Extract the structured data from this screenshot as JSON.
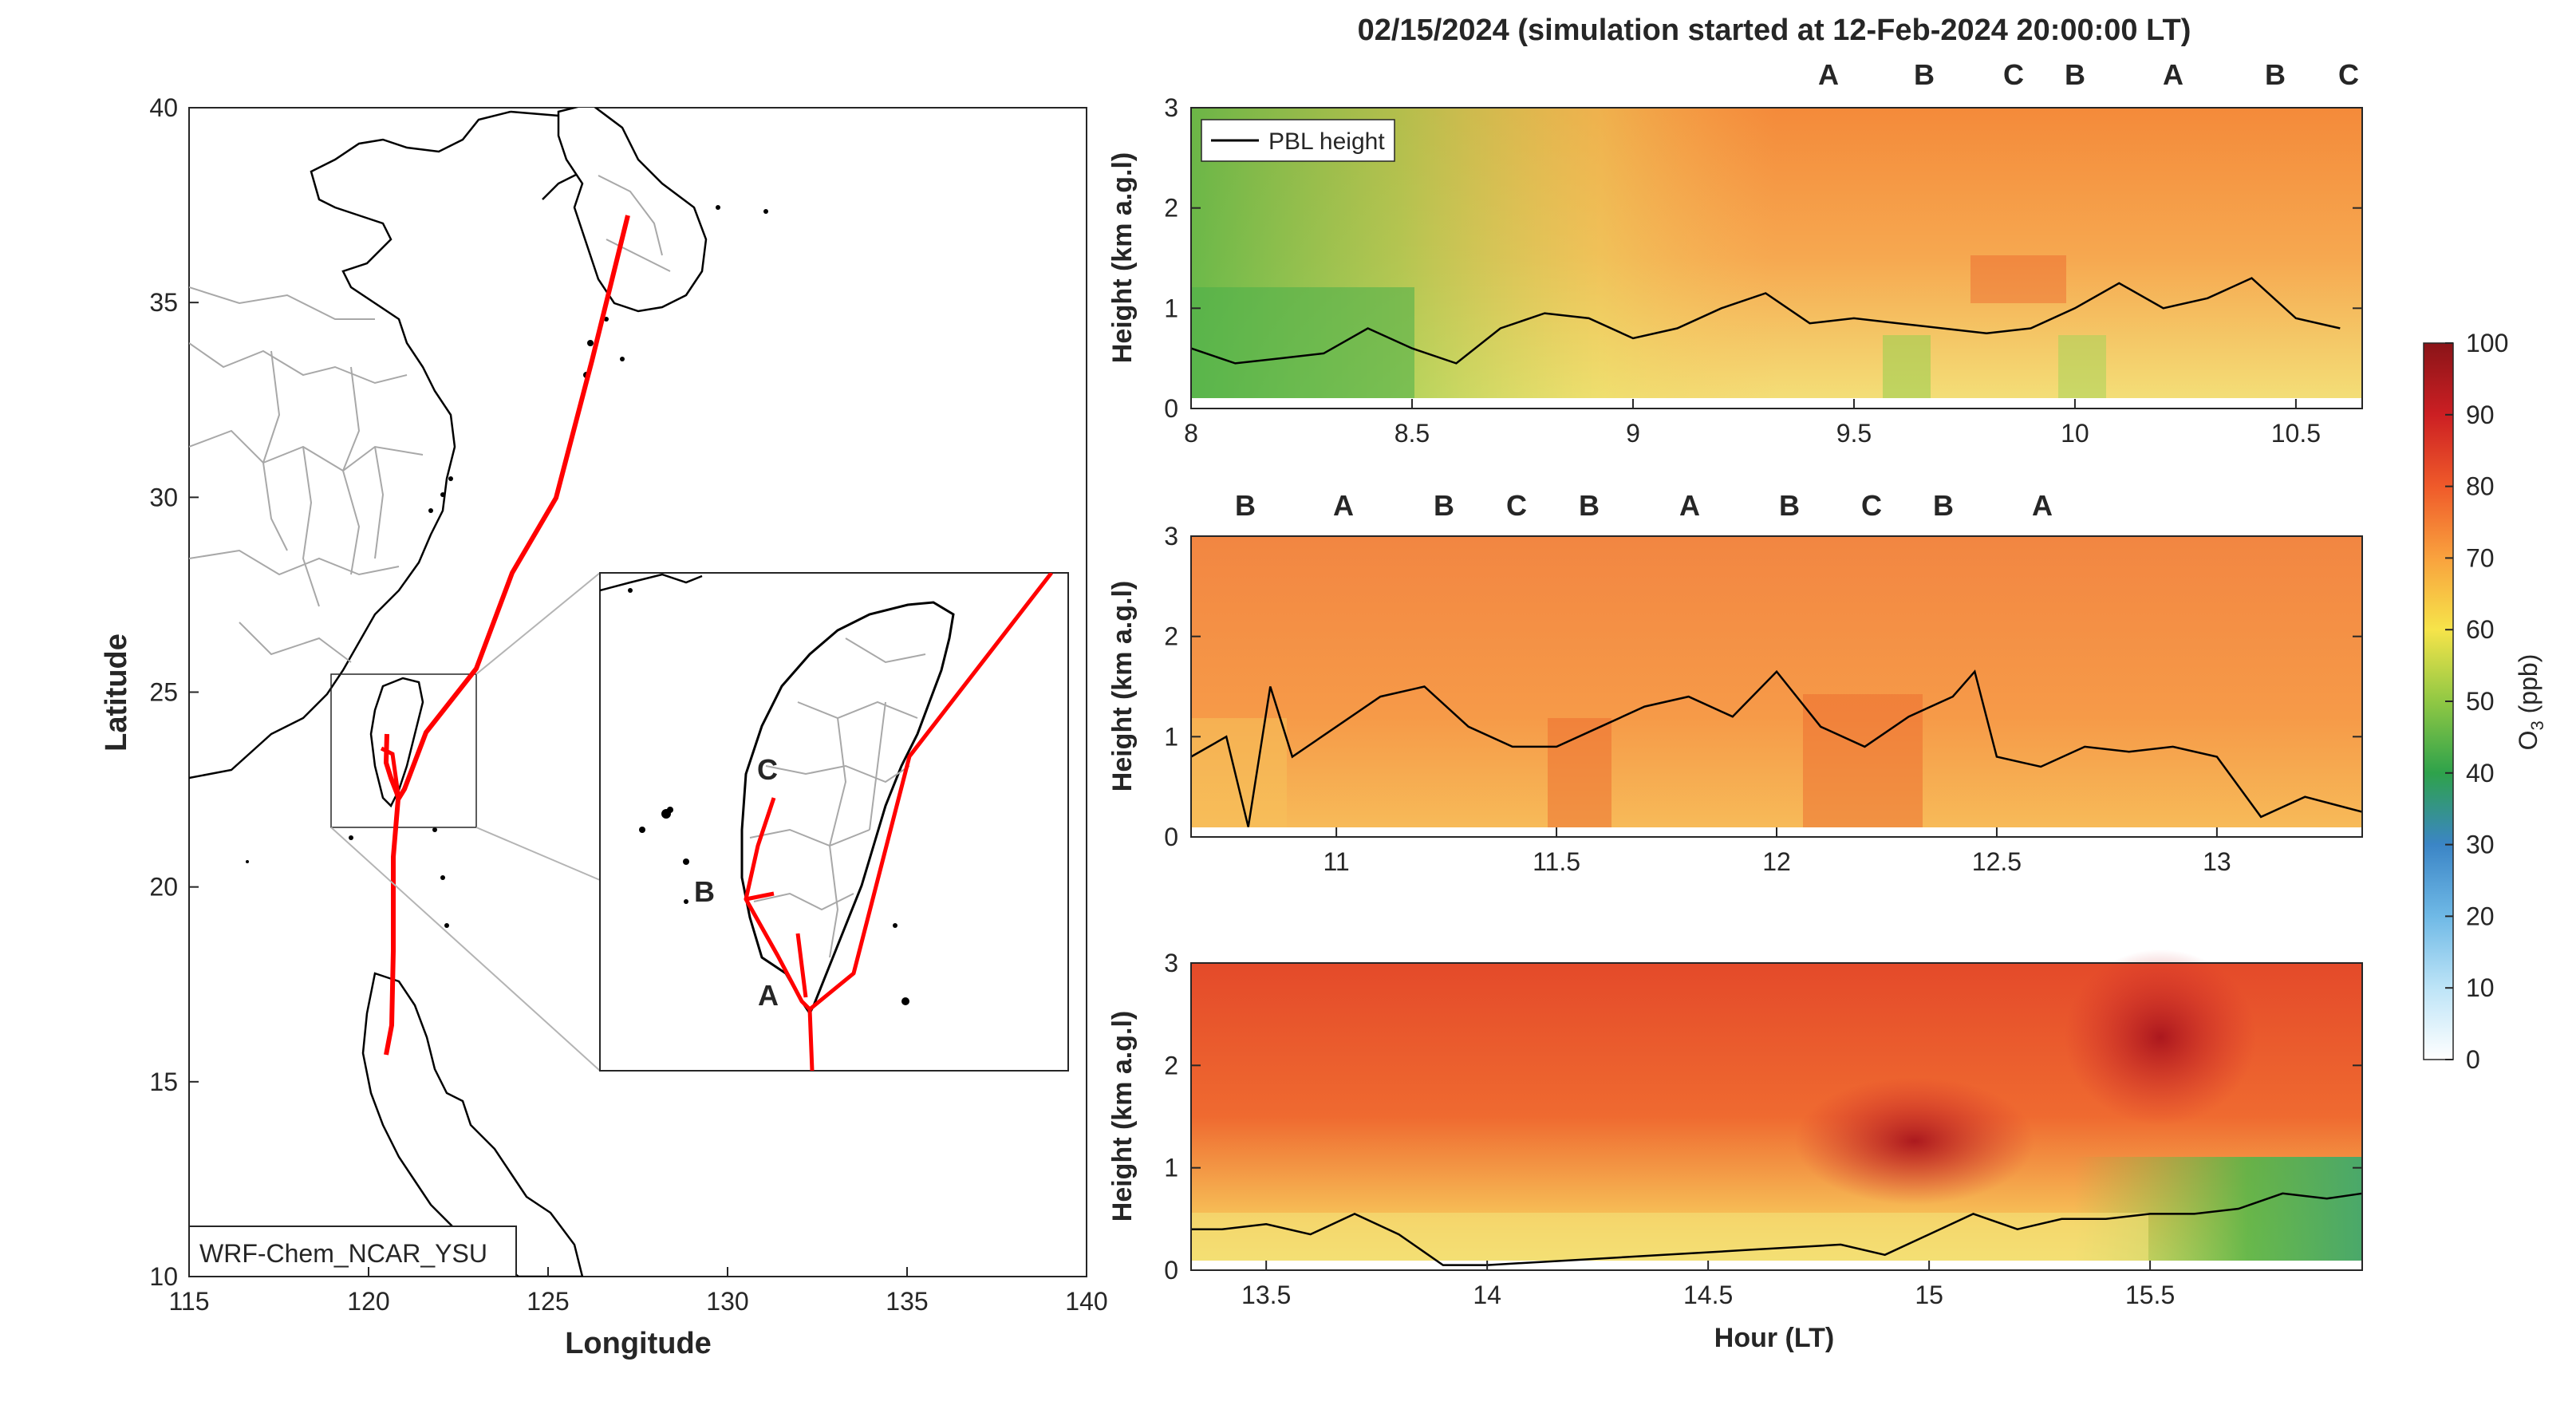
{
  "figure": {
    "title": "02/15/2024 (simulation started at 12-Feb-2024 20:00:00 LT)"
  },
  "map": {
    "xlabel": "Longitude",
    "ylabel": "Latitude",
    "xticks": [
      "115",
      "120",
      "125",
      "130",
      "135",
      "140"
    ],
    "yticks": [
      "10",
      "15",
      "20",
      "25",
      "30",
      "35",
      "40"
    ],
    "xlim": [
      115,
      140
    ],
    "ylim": [
      10,
      40
    ],
    "model_label": "WRF-Chem_NCAR_YSU",
    "track_color": "#ff0000",
    "inset_labels": [
      {
        "text": "C",
        "color": "#e6a020"
      },
      {
        "text": "B",
        "color": "#a01430"
      },
      {
        "text": "A",
        "color": "#000000"
      }
    ]
  },
  "panels": {
    "ylabel": "Height (km a.g.l)",
    "xlabel": "Hour (LT)",
    "yticks": [
      "0",
      "1",
      "2",
      "3"
    ],
    "legend_label": "PBL height",
    "colors": {
      "A": "#000000",
      "B": "#a01430",
      "C": "#e6a020"
    },
    "top": {
      "xticks": [
        "8",
        "8.5",
        "9",
        "9.5",
        "10",
        "10.5"
      ],
      "markers": [
        "A",
        "B",
        "C",
        "B",
        "A",
        "B",
        "C"
      ]
    },
    "middle": {
      "xticks": [
        "11",
        "11.5",
        "12",
        "12.5",
        "13"
      ],
      "markers": [
        "B",
        "A",
        "B",
        "C",
        "B",
        "A",
        "B",
        "C",
        "B",
        "A"
      ]
    },
    "bottom": {
      "xticks": [
        "13.5",
        "14",
        "14.5",
        "15",
        "15.5"
      ]
    }
  },
  "colorbar": {
    "label": "O3 (ppb)",
    "ticks": [
      "0",
      "10",
      "20",
      "30",
      "40",
      "50",
      "60",
      "70",
      "80",
      "90",
      "100"
    ]
  },
  "chart_data": [
    {
      "type": "line",
      "title": "",
      "xlabel": "Longitude",
      "ylabel": "Latitude",
      "xlim": [
        115,
        140
      ],
      "ylim": [
        10,
        40
      ],
      "series": [
        {
          "x": [
            127.2,
            125.9,
            125.0,
            123.6,
            123.0,
            121.6,
            121.2,
            121.0,
            120.7,
            120.7,
            120.6,
            120.5
          ],
          "y": [
            37.0,
            33.3,
            30.0,
            28.0,
            25.6,
            24.0,
            22.3,
            22.0,
            20.5,
            18.0,
            16.0,
            15.2
          ]
        },
        {
          "x": [
            120.5,
            120.5,
            120.7,
            120.9,
            121.0
          ],
          "y": [
            23.7,
            23.0,
            22.6,
            22.2,
            22.0
          ]
        }
      ]
    },
    {
      "type": "heatmap",
      "title": "",
      "xlabel": "",
      "ylabel": "Height (km a.g.l)",
      "xlim": [
        8.0,
        10.65
      ],
      "ylim": [
        0,
        3
      ],
      "series": [
        {
          "name": "PBL height",
          "x": [
            8.0,
            8.1,
            8.2,
            8.3,
            8.4,
            8.5,
            8.6,
            8.7,
            8.8,
            8.9,
            9.0,
            9.1,
            9.2,
            9.3,
            9.4,
            9.5,
            9.6,
            9.7,
            9.8,
            9.9,
            10.0,
            10.1,
            10.2,
            10.3,
            10.4,
            10.5,
            10.6
          ],
          "y": [
            0.6,
            0.45,
            0.5,
            0.55,
            0.8,
            0.6,
            0.45,
            0.8,
            0.95,
            0.9,
            0.7,
            0.8,
            1.0,
            1.15,
            0.85,
            0.9,
            0.85,
            0.8,
            0.75,
            0.8,
            1.0,
            1.25,
            1.0,
            1.1,
            1.3,
            0.9,
            0.8
          ]
        }
      ]
    },
    {
      "type": "heatmap",
      "title": "",
      "xlabel": "",
      "ylabel": "Height (km a.g.l)",
      "xlim": [
        10.67,
        13.33
      ],
      "ylim": [
        0,
        3
      ],
      "series": [
        {
          "name": "PBL height",
          "x": [
            10.67,
            10.75,
            10.8,
            10.85,
            10.9,
            11.0,
            11.1,
            11.2,
            11.3,
            11.4,
            11.5,
            11.6,
            11.7,
            11.8,
            11.9,
            12.0,
            12.1,
            12.2,
            12.3,
            12.4,
            12.45,
            12.5,
            12.6,
            12.7,
            12.8,
            12.9,
            13.0,
            13.1,
            13.2,
            13.33
          ],
          "y": [
            0.8,
            1.0,
            0.1,
            1.5,
            0.8,
            1.1,
            1.4,
            1.5,
            1.1,
            0.9,
            0.9,
            1.1,
            1.3,
            1.4,
            1.2,
            1.65,
            1.1,
            0.9,
            1.2,
            1.4,
            1.65,
            0.8,
            0.7,
            0.9,
            0.85,
            0.9,
            0.8,
            0.2,
            0.4,
            0.25
          ]
        }
      ]
    },
    {
      "type": "heatmap",
      "title": "",
      "xlabel": "Hour (LT)",
      "ylabel": "Height (km a.g.l)",
      "xlim": [
        13.33,
        15.98
      ],
      "ylim": [
        0,
        3
      ],
      "series": [
        {
          "name": "PBL height",
          "x": [
            13.33,
            13.4,
            13.5,
            13.6,
            13.7,
            13.8,
            13.9,
            14.0,
            14.2,
            14.4,
            14.6,
            14.8,
            14.9,
            15.0,
            15.1,
            15.2,
            15.3,
            15.4,
            15.5,
            15.6,
            15.7,
            15.8,
            15.9,
            15.98
          ],
          "y": [
            0.4,
            0.4,
            0.45,
            0.35,
            0.55,
            0.35,
            0.05,
            0.05,
            0.1,
            0.15,
            0.2,
            0.25,
            0.15,
            0.35,
            0.55,
            0.4,
            0.5,
            0.5,
            0.55,
            0.55,
            0.6,
            0.75,
            0.7,
            0.75
          ]
        }
      ]
    }
  ]
}
